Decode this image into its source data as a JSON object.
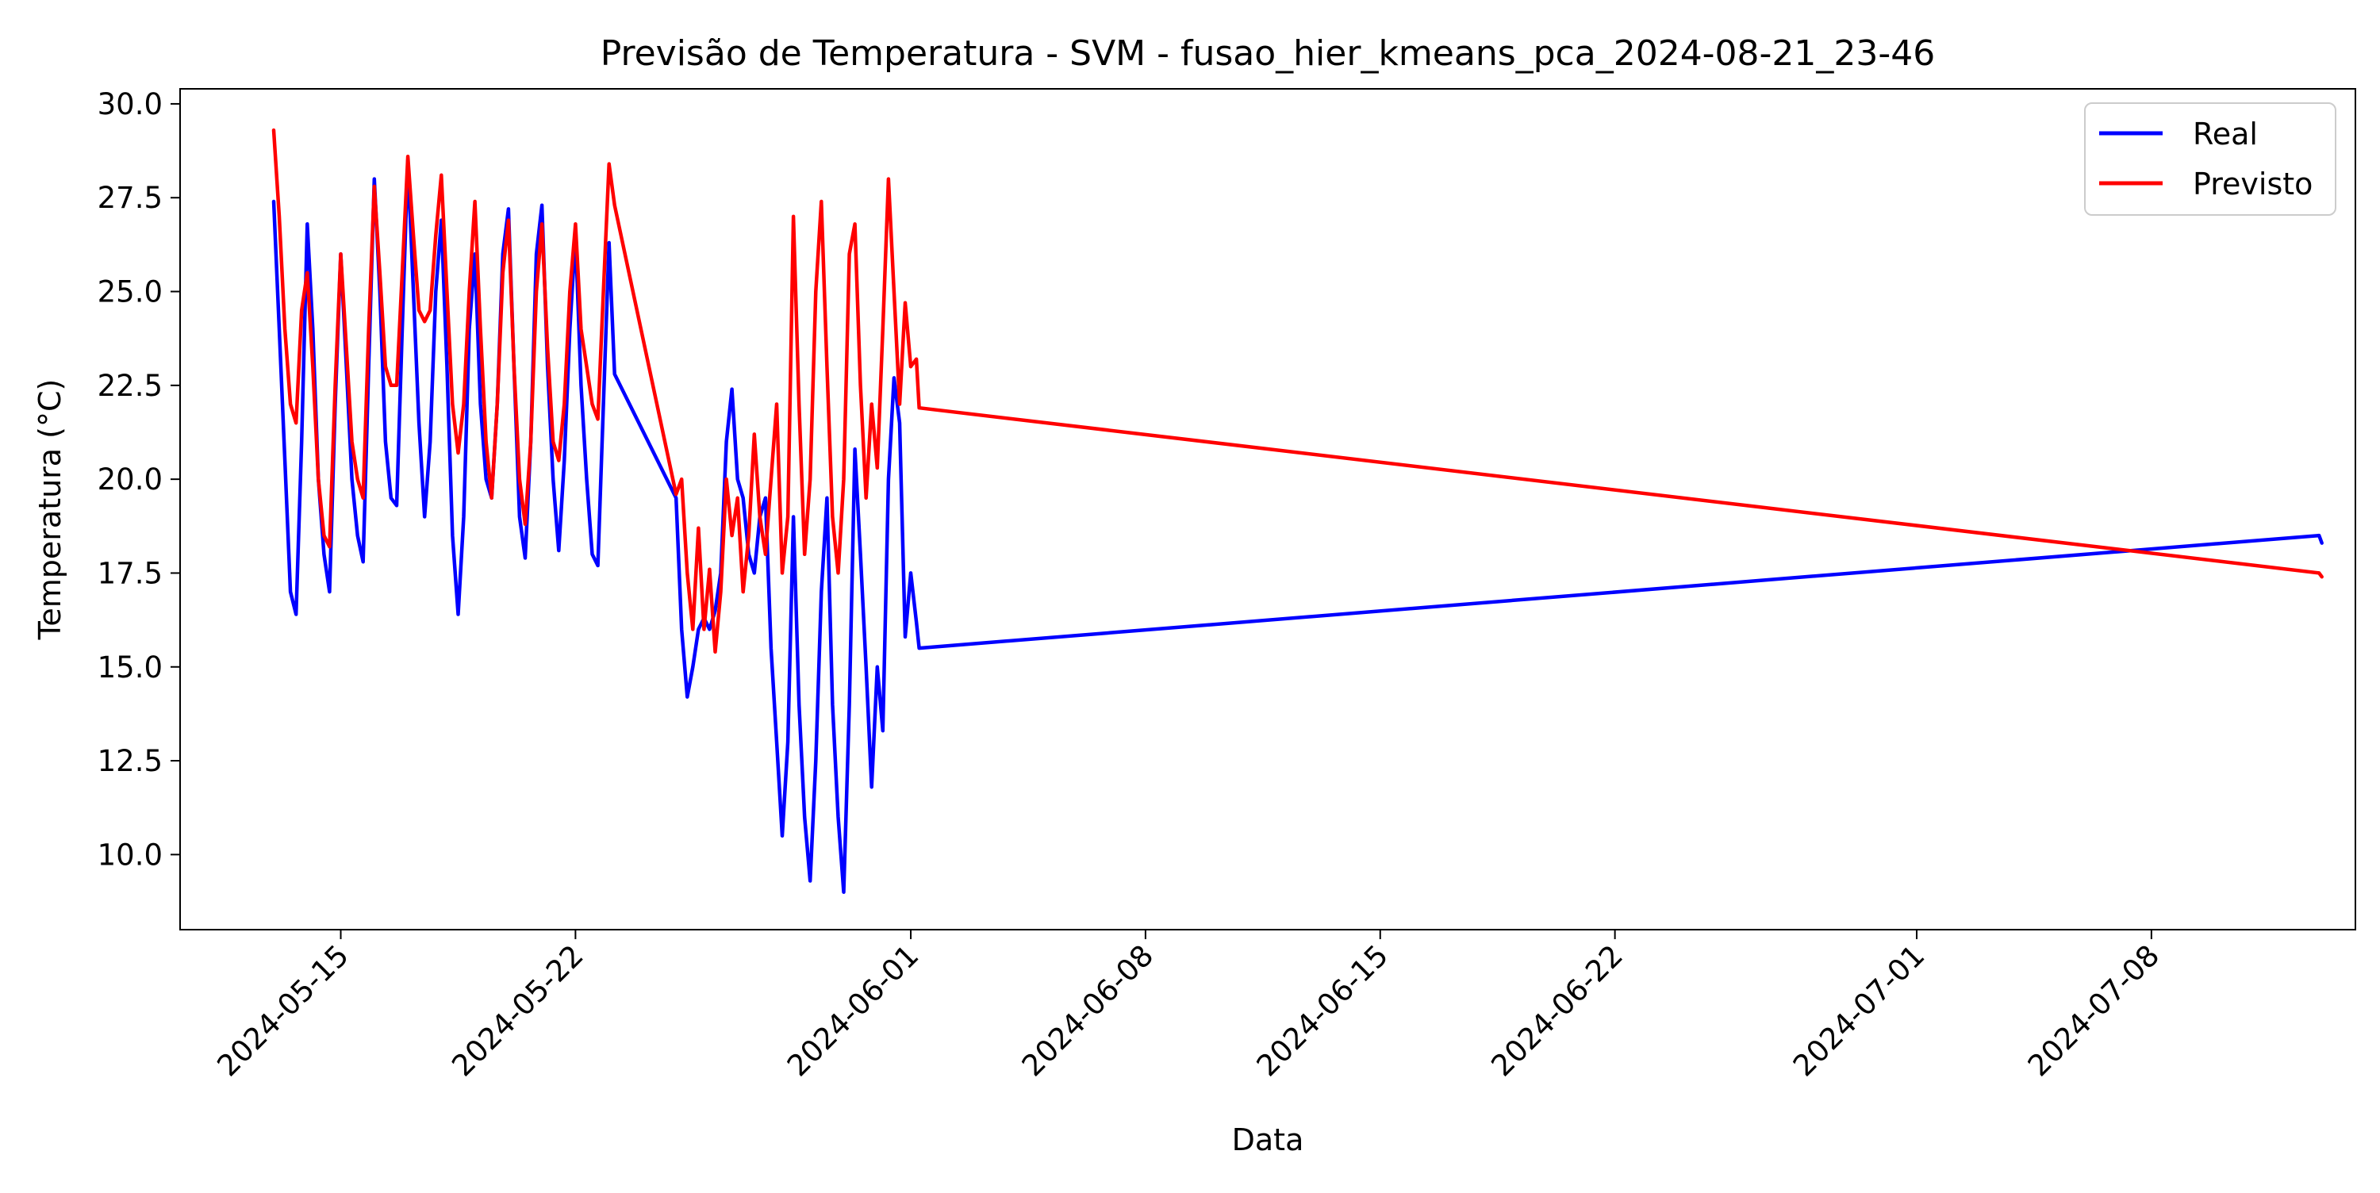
{
  "chart_data": {
    "type": "line",
    "title": "Previsão de Temperatura - SVM - fusao_hier_kmeans_pca_2024-08-21_23-46",
    "xlabel": "Data",
    "ylabel": "Temperatura (°C)",
    "x_scale": "date",
    "xlim": [
      "2024-05-10T05:00",
      "2024-07-14T02:00"
    ],
    "ylim": [
      8.0,
      30.4
    ],
    "xticks": [
      "2024-05-15",
      "2024-05-22",
      "2024-06-01",
      "2024-06-08",
      "2024-06-15",
      "2024-06-22",
      "2024-07-01",
      "2024-07-08"
    ],
    "yticks": [
      10.0,
      12.5,
      15.0,
      17.5,
      20.0,
      22.5,
      25.0,
      27.5,
      30.0
    ],
    "grid": false,
    "legend": {
      "position": "top-right"
    },
    "series": [
      {
        "name": "Real",
        "color": "#0000ff",
        "points": [
          [
            "2024-05-13T00:00",
            27.4
          ],
          [
            "2024-05-13T04:00",
            24.0
          ],
          [
            "2024-05-13T08:00",
            20.5
          ],
          [
            "2024-05-13T12:00",
            17.0
          ],
          [
            "2024-05-13T16:00",
            16.4
          ],
          [
            "2024-05-13T20:00",
            21.0
          ],
          [
            "2024-05-14T00:00",
            26.8
          ],
          [
            "2024-05-14T04:00",
            24.0
          ],
          [
            "2024-05-14T08:00",
            20.0
          ],
          [
            "2024-05-14T12:00",
            18.0
          ],
          [
            "2024-05-14T16:00",
            17.0
          ],
          [
            "2024-05-14T20:00",
            22.0
          ],
          [
            "2024-05-15T00:00",
            26.0
          ],
          [
            "2024-05-15T04:00",
            23.0
          ],
          [
            "2024-05-15T08:00",
            20.0
          ],
          [
            "2024-05-15T12:00",
            18.5
          ],
          [
            "2024-05-15T16:00",
            17.8
          ],
          [
            "2024-05-15T20:00",
            23.0
          ],
          [
            "2024-05-16T00:00",
            28.0
          ],
          [
            "2024-05-16T04:00",
            25.0
          ],
          [
            "2024-05-16T08:00",
            21.0
          ],
          [
            "2024-05-16T12:00",
            19.5
          ],
          [
            "2024-05-16T16:00",
            19.3
          ],
          [
            "2024-05-16T20:00",
            24.0
          ],
          [
            "2024-05-17T00:00",
            28.5
          ],
          [
            "2024-05-17T04:00",
            25.0
          ],
          [
            "2024-05-17T08:00",
            21.5
          ],
          [
            "2024-05-17T12:00",
            19.0
          ],
          [
            "2024-05-17T16:00",
            21.0
          ],
          [
            "2024-05-17T20:00",
            25.0
          ],
          [
            "2024-05-18T00:00",
            26.9
          ],
          [
            "2024-05-18T04:00",
            23.0
          ],
          [
            "2024-05-18T08:00",
            18.5
          ],
          [
            "2024-05-18T12:00",
            16.4
          ],
          [
            "2024-05-18T16:00",
            19.0
          ],
          [
            "2024-05-18T20:00",
            24.0
          ],
          [
            "2024-05-19T00:00",
            26.0
          ],
          [
            "2024-05-19T04:00",
            22.0
          ],
          [
            "2024-05-19T08:00",
            20.0
          ],
          [
            "2024-05-19T12:00",
            19.5
          ],
          [
            "2024-05-19T16:00",
            22.0
          ],
          [
            "2024-05-19T20:00",
            26.0
          ],
          [
            "2024-05-20T00:00",
            27.2
          ],
          [
            "2024-05-20T04:00",
            23.0
          ],
          [
            "2024-05-20T08:00",
            19.0
          ],
          [
            "2024-05-20T12:00",
            17.9
          ],
          [
            "2024-05-20T16:00",
            21.0
          ],
          [
            "2024-05-20T20:00",
            26.0
          ],
          [
            "2024-05-21T00:00",
            27.3
          ],
          [
            "2024-05-21T04:00",
            23.0
          ],
          [
            "2024-05-21T08:00",
            20.0
          ],
          [
            "2024-05-21T12:00",
            18.1
          ],
          [
            "2024-05-21T16:00",
            20.5
          ],
          [
            "2024-05-21T20:00",
            24.0
          ],
          [
            "2024-05-22T00:00",
            26.5
          ],
          [
            "2024-05-22T04:00",
            22.5
          ],
          [
            "2024-05-22T08:00",
            20.0
          ],
          [
            "2024-05-22T12:00",
            18.0
          ],
          [
            "2024-05-22T16:00",
            17.7
          ],
          [
            "2024-05-22T20:00",
            22.0
          ],
          [
            "2024-05-23T00:00",
            26.3
          ],
          [
            "2024-05-23T04:00",
            22.8
          ],
          [
            "2024-05-25T00:00",
            19.5
          ],
          [
            "2024-05-25T04:00",
            16.0
          ],
          [
            "2024-05-25T08:00",
            14.2
          ],
          [
            "2024-05-25T12:00",
            15.0
          ],
          [
            "2024-05-25T16:00",
            16.0
          ],
          [
            "2024-05-25T20:00",
            16.3
          ],
          [
            "2024-05-26T00:00",
            16.0
          ],
          [
            "2024-05-26T04:00",
            16.5
          ],
          [
            "2024-05-26T08:00",
            17.5
          ],
          [
            "2024-05-26T12:00",
            21.0
          ],
          [
            "2024-05-26T16:00",
            22.4
          ],
          [
            "2024-05-26T20:00",
            20.0
          ],
          [
            "2024-05-27T00:00",
            19.5
          ],
          [
            "2024-05-27T04:00",
            18.0
          ],
          [
            "2024-05-27T08:00",
            17.5
          ],
          [
            "2024-05-27T12:00",
            19.0
          ],
          [
            "2024-05-27T16:00",
            19.5
          ],
          [
            "2024-05-27T20:00",
            15.5
          ],
          [
            "2024-05-28T00:00",
            13.0
          ],
          [
            "2024-05-28T04:00",
            10.5
          ],
          [
            "2024-05-28T08:00",
            13.0
          ],
          [
            "2024-05-28T12:00",
            19.0
          ],
          [
            "2024-05-28T16:00",
            14.0
          ],
          [
            "2024-05-28T20:00",
            11.0
          ],
          [
            "2024-05-29T00:00",
            9.3
          ],
          [
            "2024-05-29T04:00",
            12.5
          ],
          [
            "2024-05-29T08:00",
            17.0
          ],
          [
            "2024-05-29T12:00",
            19.5
          ],
          [
            "2024-05-29T16:00",
            14.0
          ],
          [
            "2024-05-29T20:00",
            11.0
          ],
          [
            "2024-05-30T00:00",
            9.0
          ],
          [
            "2024-05-30T04:00",
            14.0
          ],
          [
            "2024-05-30T08:00",
            20.8
          ],
          [
            "2024-05-30T12:00",
            18.0
          ],
          [
            "2024-05-30T16:00",
            15.0
          ],
          [
            "2024-05-30T20:00",
            11.8
          ],
          [
            "2024-05-31T00:00",
            15.0
          ],
          [
            "2024-05-31T04:00",
            13.3
          ],
          [
            "2024-05-31T08:00",
            20.0
          ],
          [
            "2024-05-31T12:00",
            22.7
          ],
          [
            "2024-05-31T16:00",
            21.5
          ],
          [
            "2024-05-31T20:00",
            15.8
          ],
          [
            "2024-06-01T00:00",
            17.5
          ],
          [
            "2024-06-01T04:00",
            16.2
          ],
          [
            "2024-06-01T06:00",
            15.5
          ],
          [
            "2024-07-13T00:00",
            18.5
          ],
          [
            "2024-07-13T02:00",
            18.3
          ]
        ]
      },
      {
        "name": "Previsto",
        "color": "#ff0000",
        "points": [
          [
            "2024-05-13T00:00",
            29.3
          ],
          [
            "2024-05-13T04:00",
            27.0
          ],
          [
            "2024-05-13T08:00",
            24.0
          ],
          [
            "2024-05-13T12:00",
            22.0
          ],
          [
            "2024-05-13T16:00",
            21.5
          ],
          [
            "2024-05-13T20:00",
            24.5
          ],
          [
            "2024-05-14T00:00",
            25.5
          ],
          [
            "2024-05-14T04:00",
            23.0
          ],
          [
            "2024-05-14T08:00",
            20.0
          ],
          [
            "2024-05-14T12:00",
            18.5
          ],
          [
            "2024-05-14T16:00",
            18.2
          ],
          [
            "2024-05-14T20:00",
            22.5
          ],
          [
            "2024-05-15T00:00",
            26.0
          ],
          [
            "2024-05-15T04:00",
            23.5
          ],
          [
            "2024-05-15T08:00",
            21.0
          ],
          [
            "2024-05-15T12:00",
            20.0
          ],
          [
            "2024-05-15T16:00",
            19.5
          ],
          [
            "2024-05-15T20:00",
            24.0
          ],
          [
            "2024-05-16T00:00",
            27.8
          ],
          [
            "2024-05-16T04:00",
            25.5
          ],
          [
            "2024-05-16T08:00",
            23.0
          ],
          [
            "2024-05-16T12:00",
            22.5
          ],
          [
            "2024-05-16T16:00",
            22.5
          ],
          [
            "2024-05-16T20:00",
            25.5
          ],
          [
            "2024-05-17T00:00",
            28.6
          ],
          [
            "2024-05-17T04:00",
            26.5
          ],
          [
            "2024-05-17T08:00",
            24.5
          ],
          [
            "2024-05-17T12:00",
            24.2
          ],
          [
            "2024-05-17T16:00",
            24.5
          ],
          [
            "2024-05-17T20:00",
            26.5
          ],
          [
            "2024-05-18T00:00",
            28.1
          ],
          [
            "2024-05-18T04:00",
            25.0
          ],
          [
            "2024-05-18T08:00",
            22.0
          ],
          [
            "2024-05-18T12:00",
            20.7
          ],
          [
            "2024-05-18T16:00",
            22.0
          ],
          [
            "2024-05-18T20:00",
            25.0
          ],
          [
            "2024-05-19T00:00",
            27.4
          ],
          [
            "2024-05-19T04:00",
            24.0
          ],
          [
            "2024-05-19T08:00",
            21.0
          ],
          [
            "2024-05-19T12:00",
            19.5
          ],
          [
            "2024-05-19T16:00",
            22.0
          ],
          [
            "2024-05-19T20:00",
            25.5
          ],
          [
            "2024-05-20T00:00",
            26.9
          ],
          [
            "2024-05-20T04:00",
            23.0
          ],
          [
            "2024-05-20T08:00",
            20.0
          ],
          [
            "2024-05-20T12:00",
            18.8
          ],
          [
            "2024-05-20T16:00",
            21.0
          ],
          [
            "2024-05-20T20:00",
            25.0
          ],
          [
            "2024-05-21T00:00",
            26.8
          ],
          [
            "2024-05-21T04:00",
            23.5
          ],
          [
            "2024-05-21T08:00",
            21.0
          ],
          [
            "2024-05-21T12:00",
            20.5
          ],
          [
            "2024-05-21T16:00",
            22.0
          ],
          [
            "2024-05-21T20:00",
            25.0
          ],
          [
            "2024-05-22T00:00",
            26.8
          ],
          [
            "2024-05-22T04:00",
            24.0
          ],
          [
            "2024-05-22T08:00",
            23.0
          ],
          [
            "2024-05-22T12:00",
            22.0
          ],
          [
            "2024-05-22T16:00",
            21.6
          ],
          [
            "2024-05-22T20:00",
            25.0
          ],
          [
            "2024-05-23T00:00",
            28.4
          ],
          [
            "2024-05-23T04:00",
            27.3
          ],
          [
            "2024-05-25T00:00",
            19.6
          ],
          [
            "2024-05-25T04:00",
            20.0
          ],
          [
            "2024-05-25T08:00",
            17.5
          ],
          [
            "2024-05-25T12:00",
            16.0
          ],
          [
            "2024-05-25T16:00",
            18.7
          ],
          [
            "2024-05-25T20:00",
            16.0
          ],
          [
            "2024-05-26T00:00",
            17.6
          ],
          [
            "2024-05-26T04:00",
            15.4
          ],
          [
            "2024-05-26T08:00",
            17.0
          ],
          [
            "2024-05-26T12:00",
            20.0
          ],
          [
            "2024-05-26T16:00",
            18.5
          ],
          [
            "2024-05-26T20:00",
            19.5
          ],
          [
            "2024-05-27T00:00",
            17.0
          ],
          [
            "2024-05-27T04:00",
            18.5
          ],
          [
            "2024-05-27T08:00",
            21.2
          ],
          [
            "2024-05-27T12:00",
            19.0
          ],
          [
            "2024-05-27T16:00",
            18.0
          ],
          [
            "2024-05-27T20:00",
            20.0
          ],
          [
            "2024-05-28T00:00",
            22.0
          ],
          [
            "2024-05-28T04:00",
            17.5
          ],
          [
            "2024-05-28T08:00",
            19.0
          ],
          [
            "2024-05-28T12:00",
            27.0
          ],
          [
            "2024-05-28T16:00",
            22.0
          ],
          [
            "2024-05-28T20:00",
            18.0
          ],
          [
            "2024-05-29T00:00",
            20.0
          ],
          [
            "2024-05-29T04:00",
            25.0
          ],
          [
            "2024-05-29T08:00",
            27.4
          ],
          [
            "2024-05-29T12:00",
            23.0
          ],
          [
            "2024-05-29T16:00",
            19.0
          ],
          [
            "2024-05-29T20:00",
            17.5
          ],
          [
            "2024-05-30T00:00",
            20.0
          ],
          [
            "2024-05-30T04:00",
            26.0
          ],
          [
            "2024-05-30T08:00",
            26.8
          ],
          [
            "2024-05-30T12:00",
            22.5
          ],
          [
            "2024-05-30T16:00",
            19.5
          ],
          [
            "2024-05-30T20:00",
            22.0
          ],
          [
            "2024-05-31T00:00",
            20.3
          ],
          [
            "2024-05-31T04:00",
            24.0
          ],
          [
            "2024-05-31T08:00",
            28.0
          ],
          [
            "2024-05-31T12:00",
            25.0
          ],
          [
            "2024-05-31T16:00",
            22.0
          ],
          [
            "2024-05-31T20:00",
            24.7
          ],
          [
            "2024-06-01T00:00",
            23.0
          ],
          [
            "2024-06-01T04:00",
            23.2
          ],
          [
            "2024-06-01T06:00",
            21.9
          ],
          [
            "2024-07-13T00:00",
            17.5
          ],
          [
            "2024-07-13T02:00",
            17.4
          ]
        ]
      }
    ]
  }
}
